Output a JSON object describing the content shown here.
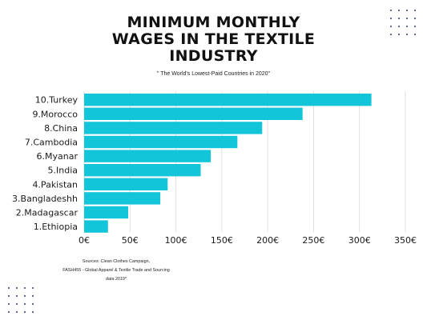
{
  "title_lines": [
    "MINIMUM MONTHLY",
    "WAGES IN THE TEXTILE",
    "INDUSTRY"
  ],
  "subtitle": "\" The World's Lowest-Paid Countries in 2020\"",
  "source_lines": [
    "Sources: Clean Clothes Campaign,",
    "FASH455 - Global Apparel & Textile Trade and Sourcing",
    "data 2019*"
  ],
  "colors": {
    "bar": "#12c5d9",
    "grid": "#d9d9d9",
    "text": "#1a1a1a",
    "dots": "#2a3a66"
  },
  "chart_data": {
    "type": "bar",
    "orientation": "horizontal",
    "title": "MINIMUM MONTHLY WAGES IN THE TEXTILE INDUSTRY",
    "subtitle": "\" The World's Lowest-Paid Countries in 2020\"",
    "categories": [
      "10.Turkey",
      "9.Morocco",
      "8.China",
      "7.Cambodia",
      "6.Myanar",
      "5.India",
      "4.Pakistan",
      "3.Bangladeshh",
      "2.Madagascar",
      "1.Ethiopia"
    ],
    "values": [
      313,
      238,
      194,
      167,
      138,
      127,
      91,
      83,
      48,
      26
    ],
    "xlim": [
      0,
      350
    ],
    "xticks": [
      0,
      50,
      100,
      150,
      200,
      250,
      300,
      350
    ],
    "xtick_labels": [
      "0€",
      "50€",
      "100€",
      "150€",
      "200€",
      "250€",
      "300€",
      "350€"
    ],
    "grid": true,
    "legend": "none"
  }
}
